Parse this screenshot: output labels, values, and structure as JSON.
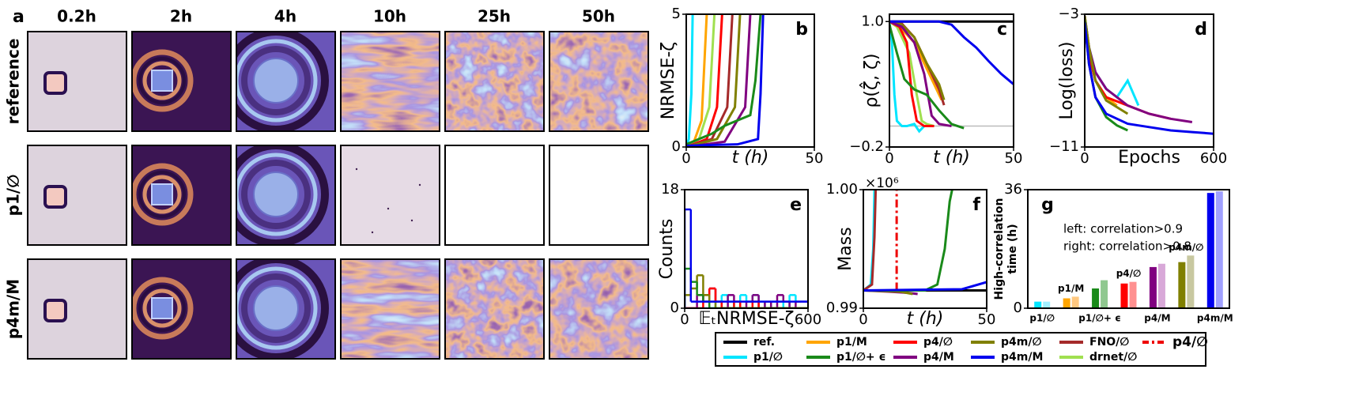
{
  "panel_a": {
    "label": "a",
    "columns": [
      "0.2h",
      "2h",
      "4h",
      "10h",
      "25h",
      "50h"
    ],
    "rows": [
      "reference",
      "p1/∅",
      "p4m/M"
    ]
  },
  "chart_data": [
    {
      "type": "line",
      "panel": "b",
      "ylabel": "NRMSE-ζ",
      "xlabel": "t (h)",
      "xlim": [
        0,
        50
      ],
      "ylim": [
        0,
        5
      ],
      "xticks": [
        0,
        50
      ],
      "yticks": [
        0,
        5
      ],
      "series": [
        {
          "color": "#00e5ff",
          "x": [
            0,
            1,
            2,
            2.5
          ],
          "values": [
            0,
            0.3,
            2,
            5
          ]
        },
        {
          "color": "#ffa500",
          "x": [
            0,
            3,
            6,
            8
          ],
          "values": [
            0,
            0.2,
            1,
            5
          ]
        },
        {
          "color": "#a0e050",
          "x": [
            0,
            5,
            9,
            11
          ],
          "values": [
            0,
            0.3,
            1.5,
            5
          ]
        },
        {
          "color": "#ff0000",
          "x": [
            0,
            8,
            12,
            14
          ],
          "values": [
            0,
            0.3,
            1.5,
            5
          ]
        },
        {
          "color": "#a52a2a",
          "x": [
            0,
            10,
            16,
            18
          ],
          "values": [
            0,
            0.3,
            1.5,
            5
          ]
        },
        {
          "color": "#808000",
          "x": [
            0,
            12,
            19,
            21
          ],
          "values": [
            0,
            0.3,
            1.5,
            5
          ]
        },
        {
          "color": "#800080",
          "x": [
            0,
            15,
            23,
            25
          ],
          "values": [
            0,
            0.2,
            1.5,
            5
          ]
        },
        {
          "color": "#1a8a1a",
          "x": [
            0,
            5,
            10,
            15,
            20,
            25,
            27,
            29
          ],
          "values": [
            0.1,
            0.3,
            0.5,
            0.8,
            1.0,
            1.2,
            2.5,
            5
          ]
        },
        {
          "color": "#0000ee",
          "x": [
            0,
            20,
            28,
            29,
            30
          ],
          "values": [
            0.05,
            0.1,
            0.3,
            2,
            5
          ]
        }
      ]
    },
    {
      "type": "line",
      "panel": "c",
      "ylabel": "ρ(ζ̂, ζ)",
      "xlabel": "t (h)",
      "xlim": [
        0,
        50
      ],
      "ylim": [
        -0.2,
        1.07
      ],
      "xticks": [
        0,
        50
      ],
      "yticks": [
        {
          "value": -0.2,
          "label": "−0.2"
        },
        {
          "value": 1,
          "label": "1.0"
        }
      ],
      "reference_line": 0,
      "series": [
        {
          "color": "#000000",
          "x": [
            0,
            50
          ],
          "values": [
            1,
            1
          ]
        },
        {
          "color": "#00e5ff",
          "x": [
            0,
            1,
            2,
            3,
            5,
            7,
            10,
            12,
            14
          ],
          "values": [
            1,
            0.8,
            0.3,
            0.05,
            0,
            0,
            0.02,
            -0.05,
            0
          ]
        },
        {
          "color": "#a0e050",
          "x": [
            0,
            3,
            8,
            11,
            13,
            15,
            18
          ],
          "values": [
            1,
            0.95,
            0.7,
            0.3,
            0.05,
            0.02,
            0
          ]
        },
        {
          "color": "#ffa500",
          "x": [
            0,
            4,
            10,
            14,
            18,
            21
          ],
          "values": [
            1,
            0.95,
            0.8,
            0.6,
            0.4,
            0.25
          ]
        },
        {
          "color": "#ff0000",
          "x": [
            0,
            4,
            7,
            9,
            11,
            14,
            18
          ],
          "values": [
            1,
            0.95,
            0.8,
            0.3,
            0.05,
            0,
            0
          ]
        },
        {
          "color": "#a52a2a",
          "x": [
            0,
            5,
            10,
            15,
            20,
            22
          ],
          "values": [
            1,
            0.98,
            0.85,
            0.6,
            0.35,
            0.2
          ]
        },
        {
          "color": "#808000",
          "x": [
            0,
            5,
            10,
            15,
            20,
            22
          ],
          "values": [
            1,
            0.97,
            0.85,
            0.6,
            0.4,
            0.25
          ]
        },
        {
          "color": "#800080",
          "x": [
            0,
            5,
            10,
            14,
            17,
            20,
            25
          ],
          "values": [
            1,
            0.95,
            0.8,
            0.5,
            0.1,
            0.02,
            0
          ]
        },
        {
          "color": "#1a8a1a",
          "x": [
            0,
            3,
            6,
            10,
            15,
            20,
            25,
            30
          ],
          "values": [
            0.97,
            0.7,
            0.45,
            0.35,
            0.3,
            0.15,
            0.02,
            -0.02
          ]
        },
        {
          "color": "#0000ee",
          "x": [
            0,
            20,
            25,
            30,
            35,
            40,
            45,
            50
          ],
          "values": [
            1,
            1,
            0.97,
            0.85,
            0.75,
            0.62,
            0.5,
            0.4
          ]
        }
      ]
    },
    {
      "type": "line",
      "panel": "d",
      "ylabel": "Log(loss)",
      "xlabel": "Epochs",
      "xlim": [
        0,
        600
      ],
      "ylim": [
        -11,
        -3
      ],
      "xticks": [
        0,
        600
      ],
      "yticks": [
        {
          "value": -3,
          "label": "−3"
        },
        {
          "value": -11,
          "label": "−11"
        }
      ],
      "series": [
        {
          "color": "#00e5ff",
          "x": [
            0,
            20,
            50,
            100,
            150,
            200,
            250
          ],
          "values": [
            -3.3,
            -5,
            -6.5,
            -7.5,
            -8,
            -7,
            -8.5
          ]
        },
        {
          "color": "#ffa500",
          "x": [
            0,
            20,
            50,
            100,
            150
          ],
          "values": [
            -3.2,
            -5,
            -7,
            -8,
            -8.5
          ]
        },
        {
          "color": "#ff0000",
          "x": [
            0,
            20,
            50,
            100,
            200,
            300,
            400
          ],
          "values": [
            -3.2,
            -5.5,
            -7,
            -8,
            -8.5,
            -9,
            -9.3
          ]
        },
        {
          "color": "#800080",
          "x": [
            0,
            20,
            50,
            100,
            200,
            300,
            400,
            500
          ],
          "values": [
            -3.1,
            -5,
            -6.5,
            -7.5,
            -8.5,
            -9,
            -9.3,
            -9.5
          ]
        },
        {
          "color": "#808000",
          "x": [
            0,
            20,
            50,
            100,
            200
          ],
          "values": [
            -3.1,
            -5,
            -7,
            -8.2,
            -9
          ]
        },
        {
          "color": "#1a8a1a",
          "x": [
            0,
            20,
            50,
            100,
            150,
            200
          ],
          "values": [
            -3.4,
            -6,
            -8,
            -9.2,
            -9.7,
            -10
          ]
        },
        {
          "color": "#0000ee",
          "x": [
            0,
            20,
            50,
            100,
            200,
            300,
            400,
            500,
            600
          ],
          "values": [
            -3.5,
            -6,
            -8,
            -9,
            -9.6,
            -9.8,
            -10,
            -10.1,
            -10.2
          ]
        }
      ]
    },
    {
      "type": "histogram",
      "panel": "e",
      "ylabel": "Counts",
      "xlabel": "𝔼ₜNRMSE-ζ",
      "xlim": [
        0,
        600
      ],
      "ylim": [
        0,
        18
      ],
      "xticks": [
        0,
        600
      ],
      "yticks": [
        0,
        18
      ],
      "bins": [
        0,
        30,
        60,
        90,
        120,
        150,
        180,
        210,
        240,
        270,
        300,
        330,
        360,
        390,
        420,
        450,
        480,
        510,
        540,
        570,
        600
      ],
      "series": [
        {
          "color": "#00e5ff",
          "values": [
            0,
            0,
            0,
            0,
            0,
            1,
            2,
            1,
            0,
            2,
            1,
            2,
            1,
            0,
            1,
            1,
            0,
            2,
            1,
            1
          ]
        },
        {
          "color": "#800080",
          "values": [
            0,
            0,
            2,
            1,
            3,
            1,
            0,
            2,
            1,
            0,
            1,
            2,
            0,
            1,
            0,
            2,
            1,
            0,
            1,
            1
          ]
        },
        {
          "color": "#ff0000",
          "values": [
            0,
            0,
            0,
            2,
            3,
            1,
            0,
            0,
            1,
            0,
            0,
            1,
            0,
            0,
            0,
            0,
            0,
            0,
            0,
            0
          ]
        },
        {
          "color": "#808000",
          "values": [
            2,
            3,
            5,
            2,
            1,
            0,
            0,
            0,
            0,
            0,
            0,
            0,
            0,
            0,
            0,
            0,
            0,
            0,
            0,
            0
          ]
        },
        {
          "color": "#1a8a1a",
          "values": [
            6,
            4,
            2,
            1,
            0,
            0,
            0,
            0,
            0,
            0,
            0,
            0,
            0,
            0,
            0,
            0,
            0,
            0,
            0,
            0
          ]
        },
        {
          "color": "#0000ee",
          "values": [
            15,
            1,
            1,
            1,
            1,
            1,
            1,
            1,
            1,
            1,
            1,
            1,
            1,
            1,
            1,
            1,
            1,
            1,
            1,
            1
          ]
        }
      ]
    },
    {
      "type": "line",
      "panel": "f",
      "ylabel": "Mass",
      "xlabel": "t (h)",
      "annotation": "×10⁶",
      "xlim": [
        0,
        50
      ],
      "ylim": [
        0.99,
        1.0
      ],
      "xticks": [
        0,
        50
      ],
      "yticks": [
        0.99,
        {
          "value": 1.0,
          "label": "1.00"
        }
      ],
      "series": [
        {
          "color": "#000000",
          "x": [
            0,
            50
          ],
          "values": [
            0.9915,
            0.9915
          ]
        },
        {
          "color": "#00e5ff",
          "x": [
            0,
            3,
            4,
            4.5
          ],
          "values": [
            0.9915,
            0.992,
            0.995,
            1.0
          ]
        },
        {
          "color": "#a52a2a",
          "x": [
            0,
            3.5,
            4.5,
            5
          ],
          "values": [
            0.9915,
            0.992,
            0.996,
            1.0
          ]
        },
        {
          "color": "#800080",
          "x": [
            0,
            10,
            18,
            22
          ],
          "values": [
            0.9915,
            0.9914,
            0.9913,
            0.9912
          ]
        },
        {
          "color": "#808000",
          "x": [
            0,
            15,
            20
          ],
          "values": [
            0.9915,
            0.9914,
            0.9912
          ]
        },
        {
          "color": "#ee0000",
          "style": "dashdot",
          "x": [
            13.5,
            13.5
          ],
          "values": [
            0.9915,
            1.0
          ]
        },
        {
          "color": "#1a8a1a",
          "x": [
            0,
            25,
            30,
            33,
            35,
            36
          ],
          "values": [
            0.9915,
            0.9915,
            0.992,
            0.995,
            0.999,
            1.0
          ]
        },
        {
          "color": "#0000ee",
          "x": [
            0,
            40,
            50
          ],
          "values": [
            0.9915,
            0.9916,
            0.9922
          ]
        }
      ]
    },
    {
      "type": "bar",
      "panel": "g",
      "ylabel": [
        "High-correlation",
        "time (h)"
      ],
      "ylim": [
        0,
        36
      ],
      "yticks": [
        0,
        36
      ],
      "annotations": [
        "left: correlation>0.9",
        "right: correlation>0.8"
      ],
      "categories": [
        "p1/∅",
        "p1/M",
        "p1/∅+ ϵ",
        "p4/∅",
        "p4/M",
        "p4m/∅",
        "p4m/M"
      ],
      "series": [
        {
          "colors": [
            "#00e5ff",
            "#ffa500",
            "#1a8a1a",
            "#ff0000",
            "#800080",
            "#808000",
            "#0000ee"
          ],
          "values": [
            2,
            3,
            6,
            7.5,
            12.5,
            14,
            35
          ]
        },
        {
          "colors": [
            "#a0f0ff",
            "#ffc880",
            "#90c890",
            "#ff9090",
            "#d8a8d8",
            "#c8c8a0",
            "#a0a0ff"
          ],
          "values": [
            2,
            3.5,
            8.5,
            8,
            13.5,
            16,
            35.5
          ]
        }
      ]
    }
  ],
  "legend": [
    {
      "name": "ref.",
      "color": "#000000"
    },
    {
      "name": "p1/M",
      "color": "#ffa500"
    },
    {
      "name": "p4/∅",
      "color": "#ff0000"
    },
    {
      "name": "p4m/∅",
      "color": "#808000"
    },
    {
      "name": "FNO/∅",
      "color": "#a52a2a"
    },
    {
      "name": "p4/∅",
      "color": "#ee0000",
      "style": "dashdot"
    },
    {
      "name": "p1/∅",
      "color": "#00e5ff"
    },
    {
      "name": "p1/∅+ ϵ",
      "color": "#1a8a1a"
    },
    {
      "name": "p4/M",
      "color": "#800080"
    },
    {
      "name": "p4m/M",
      "color": "#0000ee"
    },
    {
      "name": "drnet/∅",
      "color": "#a0e050"
    }
  ]
}
